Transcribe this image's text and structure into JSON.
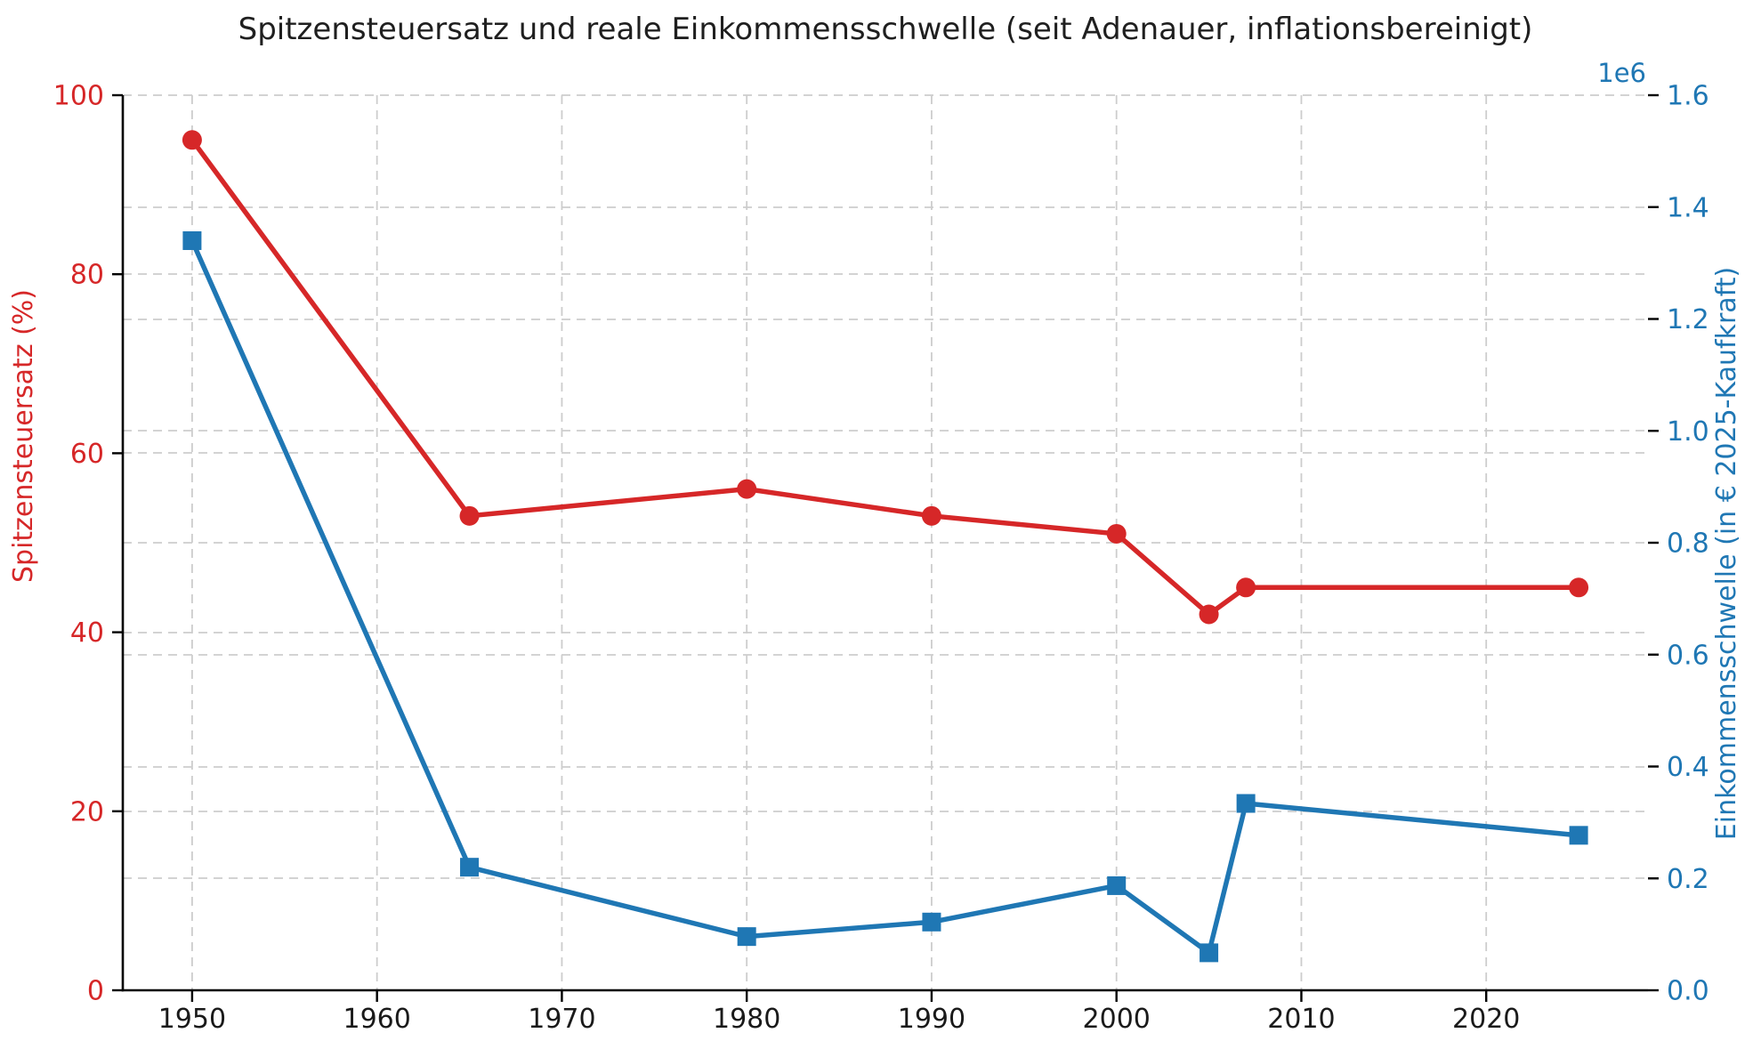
{
  "title": "Spitzensteuersatz und reale Einkommensschwelle (seit Adenauer, inflationsbereinigt)",
  "chart_data": {
    "type": "line",
    "title": "Spitzensteuersatz und reale Einkommensschwelle (seit Adenauer, inflationsbereinigt)",
    "x": [
      1950,
      1965,
      1980,
      1990,
      2000,
      2005,
      2007,
      2025
    ],
    "series": [
      {
        "id": "spitzensteuersatz",
        "name": "Spitzensteuersatz (%)",
        "axis": "left",
        "color": "#d62728",
        "marker": "circle",
        "values": [
          95,
          53,
          56,
          53,
          51,
          42,
          45,
          45
        ]
      },
      {
        "id": "einkommensschwelle",
        "name": "Einkommensschwelle (in € 2025-Kaufkraft)",
        "axis": "right",
        "color": "#1f77b4",
        "marker": "square",
        "values": [
          1340000,
          220000,
          96000,
          122000,
          187000,
          67000,
          334000,
          277000
        ]
      }
    ],
    "x_axis": {
      "range": [
        1946.25,
        2028.75
      ],
      "ticks": [
        1950,
        1960,
        1970,
        1980,
        1990,
        2000,
        2010,
        2020
      ],
      "tick_labels": [
        "1950",
        "1960",
        "1970",
        "1980",
        "1990",
        "2000",
        "2010",
        "2020"
      ]
    },
    "left_axis": {
      "label": "Spitzensteuersatz (%)",
      "range": [
        0,
        100
      ],
      "ticks": [
        0,
        20,
        40,
        60,
        80,
        100
      ],
      "tick_labels": [
        "0",
        "20",
        "40",
        "60",
        "80",
        "100"
      ],
      "color": "#d62728"
    },
    "right_axis": {
      "label": "Einkommensschwelle (in € 2025-Kaufkraft)",
      "range": [
        0,
        1600000
      ],
      "ticks": [
        0,
        200000,
        400000,
        600000,
        800000,
        1000000,
        1200000,
        1400000,
        1600000
      ],
      "tick_labels": [
        "0.0",
        "0.2",
        "0.4",
        "0.6",
        "0.8",
        "1.0",
        "1.2",
        "1.4",
        "1.6"
      ],
      "offset_text": "1e6",
      "color": "#1f77b4"
    },
    "grid": "dashed-both-axes",
    "legend": "none"
  }
}
